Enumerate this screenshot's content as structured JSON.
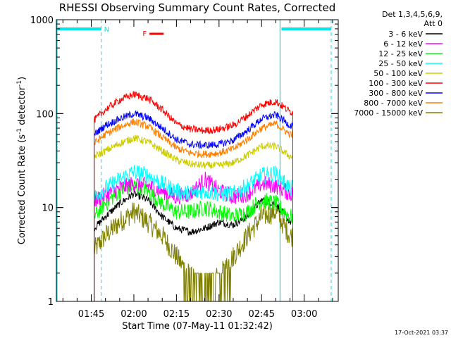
{
  "chart_data": {
    "type": "line",
    "title": "RHESSI Observing Summary Count Rates, Corrected",
    "xlabel": "Start Time (07-May-11 01:32:42)",
    "ylabel_main": "Corrected Count Rate (s",
    "ylabel_sup1": "-1",
    "ylabel_mid": " detector",
    "ylabel_sup2": "-1",
    "ylabel_end": ")",
    "y_scale": "log",
    "ylim": [
      1,
      1000
    ],
    "xlim": [
      "01:32:42",
      "03:12:00"
    ],
    "x_ticks": [
      "01:45",
      "02:00",
      "02:15",
      "02:30",
      "02:45",
      "03:00"
    ],
    "y_ticks": [
      "1",
      "10",
      "100",
      "1000"
    ],
    "footer_date": "17-Oct-2021 03:37",
    "legend": {
      "header1": "Det 1,3,4,5,6,9,",
      "header2": "Att 0"
    },
    "markers": {
      "N_label": "N",
      "F_label": "F",
      "night_intervals": [
        [
          "01:32:42",
          "01:48:30"
        ],
        [
          "02:52:00",
          "03:09:30"
        ]
      ],
      "saa_lines": [
        "01:32:42",
        "02:51:30"
      ],
      "flare_interval": [
        "02:05:30",
        "02:10:30"
      ]
    },
    "data_window": [
      "01:46:00",
      "02:56:00"
    ],
    "series": [
      {
        "name": "3 - 6 keV",
        "color": "#000000",
        "x": [
          "01:46",
          "01:50",
          "01:55",
          "02:00",
          "02:05",
          "02:10",
          "02:15",
          "02:20",
          "02:25",
          "02:30",
          "02:35",
          "02:40",
          "02:45",
          "02:50",
          "02:55"
        ],
        "y": [
          6,
          8,
          11,
          14,
          12,
          8,
          6,
          5.5,
          6,
          7,
          6.5,
          8,
          12,
          11,
          7
        ]
      },
      {
        "name": "6 - 12 keV",
        "color": "#ff00ff",
        "x": [
          "01:46",
          "01:50",
          "01:55",
          "02:00",
          "02:05",
          "02:10",
          "02:15",
          "02:20",
          "02:25",
          "02:30",
          "02:35",
          "02:40",
          "02:45",
          "02:50",
          "02:55"
        ],
        "y": [
          12,
          13.5,
          16,
          18,
          17,
          15,
          13,
          14,
          20,
          15,
          13,
          14,
          18,
          17,
          14
        ]
      },
      {
        "name": "12 - 25 keV",
        "color": "#00ff00",
        "x": [
          "01:46",
          "01:50",
          "01:55",
          "02:00",
          "02:05",
          "02:10",
          "02:15",
          "02:20",
          "02:25",
          "02:30",
          "02:35",
          "02:40",
          "02:45",
          "02:50",
          "02:55"
        ],
        "y": [
          8,
          11,
          15,
          17,
          15,
          11,
          9,
          9,
          10,
          9,
          8,
          9,
          12,
          11,
          8
        ]
      },
      {
        "name": "25 - 50 keV",
        "color": "#00ffff",
        "x": [
          "01:46",
          "01:50",
          "01:55",
          "02:00",
          "02:05",
          "02:10",
          "02:15",
          "02:20",
          "02:25",
          "02:30",
          "02:35",
          "02:40",
          "02:45",
          "02:50",
          "02:55"
        ],
        "y": [
          13,
          16,
          20,
          24,
          22,
          18,
          15,
          14,
          15,
          14,
          14,
          17,
          22,
          23,
          16
        ]
      },
      {
        "name": "50 - 100 keV",
        "color": "#cccc00",
        "x": [
          "01:46",
          "01:50",
          "01:55",
          "02:00",
          "02:05",
          "02:10",
          "02:15",
          "02:20",
          "02:25",
          "02:30",
          "02:35",
          "02:40",
          "02:45",
          "02:50",
          "02:55"
        ],
        "y": [
          35,
          40,
          48,
          55,
          50,
          40,
          32,
          29,
          28,
          28,
          30,
          36,
          45,
          45,
          35
        ]
      },
      {
        "name": "100 - 300 keV",
        "color": "#ff0000",
        "x": [
          "01:46",
          "01:50",
          "01:55",
          "02:00",
          "02:05",
          "02:10",
          "02:15",
          "02:20",
          "02:25",
          "02:30",
          "02:35",
          "02:40",
          "02:45",
          "02:50",
          "02:55"
        ],
        "y": [
          85,
          110,
          140,
          160,
          145,
          110,
          78,
          68,
          66,
          68,
          75,
          95,
          125,
          135,
          105
        ]
      },
      {
        "name": "300 - 800 keV",
        "color": "#0000ff",
        "x": [
          "01:46",
          "01:50",
          "01:55",
          "02:00",
          "02:05",
          "02:10",
          "02:15",
          "02:20",
          "02:25",
          "02:30",
          "02:35",
          "02:40",
          "02:45",
          "02:50",
          "02:55"
        ],
        "y": [
          60,
          75,
          88,
          100,
          90,
          70,
          53,
          47,
          46,
          47,
          52,
          66,
          88,
          97,
          75
        ]
      },
      {
        "name": "800 - 7000 keV",
        "color": "#ff8000",
        "x": [
          "01:46",
          "01:50",
          "01:55",
          "02:00",
          "02:05",
          "02:10",
          "02:15",
          "02:20",
          "02:25",
          "02:30",
          "02:35",
          "02:40",
          "02:45",
          "02:50",
          "02:55"
        ],
        "y": [
          48,
          60,
          72,
          82,
          73,
          56,
          43,
          38,
          37,
          38,
          42,
          53,
          70,
          78,
          60
        ]
      },
      {
        "name": "7000 - 15000 keV",
        "color": "#808000",
        "x": [
          "01:46",
          "01:50",
          "01:55",
          "02:00",
          "02:05",
          "02:10",
          "02:15",
          "02:20",
          "02:25",
          "02:30",
          "02:35",
          "02:40",
          "02:45",
          "02:50",
          "02:55"
        ],
        "y": [
          3.5,
          5,
          7,
          9,
          7,
          5,
          3,
          1.8,
          1.5,
          1.8,
          3,
          5,
          8,
          9,
          5
        ]
      }
    ]
  }
}
